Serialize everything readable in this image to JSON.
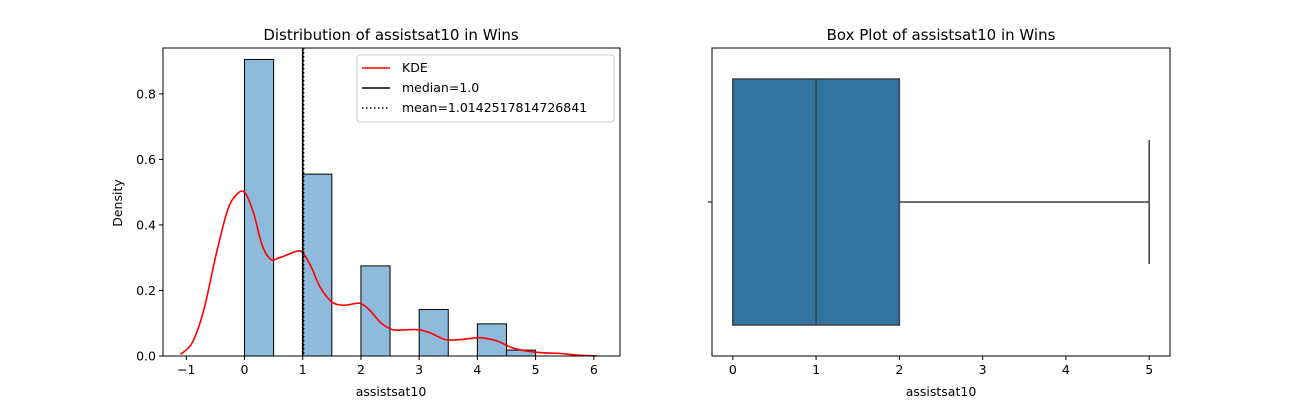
{
  "chart_data": [
    {
      "type": "bar",
      "title": "Distribution of assistsat10 in Wins",
      "xlabel": "assistsat10",
      "ylabel": "Density",
      "xlim": [
        -1.4,
        6.45
      ],
      "ylim": [
        0,
        0.94
      ],
      "xticks": [
        -1,
        0,
        1,
        2,
        3,
        4,
        5,
        6
      ],
      "yticks": [
        0.0,
        0.2,
        0.4,
        0.6,
        0.8
      ],
      "ytick_labels": [
        "0.0",
        "0.2",
        "0.4",
        "0.6",
        "0.8"
      ],
      "bar_width": 0.5,
      "bars": [
        {
          "x0": 0.0,
          "value": 0.905
        },
        {
          "x0": 1.0,
          "value": 0.555
        },
        {
          "x0": 2.0,
          "value": 0.275
        },
        {
          "x0": 3.0,
          "value": 0.142
        },
        {
          "x0": 4.0,
          "value": 0.098
        },
        {
          "x0": 4.5,
          "value": 0.018
        }
      ],
      "bar_color": "#8ebbdb",
      "kde": {
        "name": "KDE",
        "color": "#ff0000",
        "x": [
          -1.1,
          -0.9,
          -0.7,
          -0.5,
          -0.3,
          -0.15,
          0.0,
          0.15,
          0.3,
          0.45,
          0.6,
          0.75,
          0.9,
          1.0,
          1.15,
          1.3,
          1.5,
          1.7,
          1.9,
          2.0,
          2.15,
          2.35,
          2.55,
          2.75,
          3.0,
          3.2,
          3.45,
          3.7,
          3.95,
          4.1,
          4.35,
          4.6,
          4.85,
          5.1,
          5.4,
          5.7,
          6.05
        ],
        "y": [
          0.005,
          0.04,
          0.14,
          0.3,
          0.44,
          0.49,
          0.5,
          0.44,
          0.34,
          0.295,
          0.3,
          0.31,
          0.32,
          0.315,
          0.27,
          0.21,
          0.165,
          0.155,
          0.16,
          0.16,
          0.14,
          0.1,
          0.08,
          0.08,
          0.08,
          0.07,
          0.05,
          0.05,
          0.055,
          0.055,
          0.045,
          0.025,
          0.015,
          0.01,
          0.008,
          0.003,
          0.0
        ]
      },
      "median": {
        "value": 1.0,
        "label": "median=1.0",
        "color": "#000000"
      },
      "mean": {
        "value": 1.0142517814726841,
        "label": "mean=1.0142517814726841",
        "color": "#000000"
      },
      "legend_position": "top-right"
    },
    {
      "type": "box",
      "title": "Box Plot of assistsat10 in Wins",
      "xlabel": "assistsat10",
      "xlim": [
        -0.25,
        5.25
      ],
      "xticks": [
        0,
        1,
        2,
        3,
        4,
        5
      ],
      "box": {
        "min": 0,
        "q1": 0,
        "median": 1,
        "q3": 2,
        "max": 5
      },
      "box_color": "#3274a1"
    }
  ]
}
